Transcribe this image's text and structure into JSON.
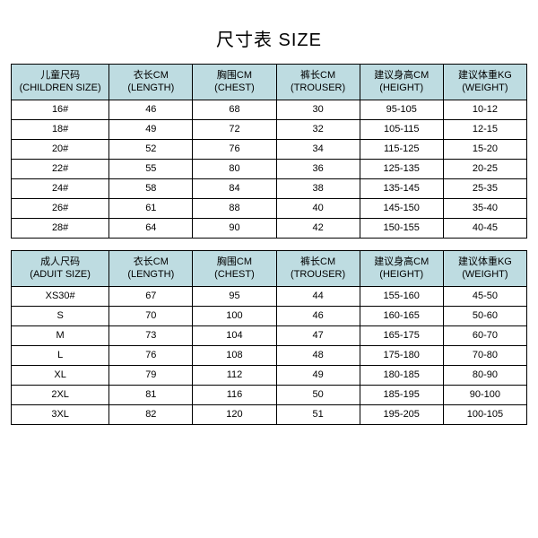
{
  "title": "尺寸表 SIZE",
  "colors": {
    "header_bg": "#bedce1",
    "border": "#000000",
    "background": "#ffffff",
    "text": "#000000"
  },
  "columns": [
    {
      "key": "size"
    },
    {
      "key": "length",
      "cn": "衣长CM",
      "en": "(LENGTH)"
    },
    {
      "key": "chest",
      "cn": "胸围CM",
      "en": "(CHEST)"
    },
    {
      "key": "trouser",
      "cn": "裤长CM",
      "en": "(TROUSER)"
    },
    {
      "key": "height",
      "cn": "建议身高CM",
      "en": "(HEIGHT)"
    },
    {
      "key": "weight",
      "cn": "建议体重KG",
      "en": "(WEIGHT)"
    }
  ],
  "children": {
    "size_header": {
      "cn": "儿童尺码",
      "en": "(CHILDREN SIZE)"
    },
    "rows": [
      {
        "size": "16#",
        "length": "46",
        "chest": "68",
        "trouser": "30",
        "height": "95-105",
        "weight": "10-12"
      },
      {
        "size": "18#",
        "length": "49",
        "chest": "72",
        "trouser": "32",
        "height": "105-115",
        "weight": "12-15"
      },
      {
        "size": "20#",
        "length": "52",
        "chest": "76",
        "trouser": "34",
        "height": "115-125",
        "weight": "15-20"
      },
      {
        "size": "22#",
        "length": "55",
        "chest": "80",
        "trouser": "36",
        "height": "125-135",
        "weight": "20-25"
      },
      {
        "size": "24#",
        "length": "58",
        "chest": "84",
        "trouser": "38",
        "height": "135-145",
        "weight": "25-35"
      },
      {
        "size": "26#",
        "length": "61",
        "chest": "88",
        "trouser": "40",
        "height": "145-150",
        "weight": "35-40"
      },
      {
        "size": "28#",
        "length": "64",
        "chest": "90",
        "trouser": "42",
        "height": "150-155",
        "weight": "40-45"
      }
    ]
  },
  "adult": {
    "size_header": {
      "cn": "成人尺码",
      "en": "(ADUIT SIZE)"
    },
    "rows": [
      {
        "size": "XS30#",
        "length": "67",
        "chest": "95",
        "trouser": "44",
        "height": "155-160",
        "weight": "45-50"
      },
      {
        "size": "S",
        "length": "70",
        "chest": "100",
        "trouser": "46",
        "height": "160-165",
        "weight": "50-60"
      },
      {
        "size": "M",
        "length": "73",
        "chest": "104",
        "trouser": "47",
        "height": "165-175",
        "weight": "60-70"
      },
      {
        "size": "L",
        "length": "76",
        "chest": "108",
        "trouser": "48",
        "height": "175-180",
        "weight": "70-80"
      },
      {
        "size": "XL",
        "length": "79",
        "chest": "112",
        "trouser": "49",
        "height": "180-185",
        "weight": "80-90"
      },
      {
        "size": "2XL",
        "length": "81",
        "chest": "116",
        "trouser": "50",
        "height": "185-195",
        "weight": "90-100"
      },
      {
        "size": "3XL",
        "length": "82",
        "chest": "120",
        "trouser": "51",
        "height": "195-205",
        "weight": "100-105"
      }
    ]
  }
}
